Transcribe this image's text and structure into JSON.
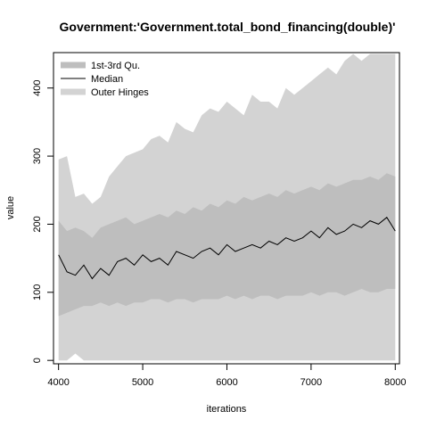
{
  "chart_data": {
    "type": "area",
    "title": "Government:'Government.total_bond_financing(double)'",
    "xlabel": "iterations",
    "ylabel": "value",
    "xlim": [
      3940,
      8050
    ],
    "ylim": [
      -5,
      452
    ],
    "x_ticks": [
      "4000",
      "5000",
      "6000",
      "7000",
      "8000"
    ],
    "y_ticks": [
      "0",
      "100",
      "200",
      "300",
      "400"
    ],
    "legend_placement": "top-left",
    "grid": false,
    "colors": {
      "outer_hinges": "#d3d3d3",
      "quartiles": "#bebebe",
      "median": "#000000",
      "axis": "#000000",
      "plot_border": "#000000"
    },
    "legend": [
      {
        "label": "1st-3rd Qu.",
        "kind": "band",
        "color": "#bebebe"
      },
      {
        "label": "Median",
        "kind": "line",
        "color": "#000000"
      },
      {
        "label": "Outer Hinges",
        "kind": "band",
        "color": "#d3d3d3"
      }
    ],
    "x": [
      4000,
      4100,
      4200,
      4300,
      4400,
      4500,
      4600,
      4700,
      4800,
      4900,
      5000,
      5100,
      5200,
      5300,
      5400,
      5500,
      5600,
      5700,
      5800,
      5900,
      6000,
      6100,
      6200,
      6300,
      6400,
      6500,
      6600,
      6700,
      6800,
      6900,
      7000,
      7100,
      7200,
      7300,
      7400,
      7500,
      7600,
      7700,
      7800,
      7900,
      8000
    ],
    "series": [
      {
        "name": "Outer Hinges",
        "lower": [
          0,
          0,
          10,
          0,
          0,
          0,
          0,
          0,
          0,
          0,
          0,
          0,
          0,
          0,
          0,
          0,
          0,
          0,
          0,
          0,
          0,
          0,
          0,
          0,
          0,
          0,
          0,
          0,
          0,
          0,
          0,
          0,
          0,
          0,
          0,
          0,
          0,
          0,
          0,
          0,
          0
        ],
        "upper": [
          295,
          300,
          240,
          245,
          230,
          240,
          270,
          285,
          300,
          305,
          310,
          325,
          330,
          320,
          350,
          340,
          335,
          360,
          370,
          365,
          380,
          370,
          360,
          390,
          380,
          380,
          370,
          400,
          390,
          400,
          410,
          420,
          430,
          420,
          440,
          450,
          440,
          450,
          450,
          450,
          450
        ]
      },
      {
        "name": "1st-3rd Qu.",
        "lower": [
          65,
          70,
          75,
          80,
          80,
          85,
          80,
          85,
          80,
          85,
          85,
          90,
          90,
          85,
          90,
          90,
          85,
          90,
          90,
          90,
          95,
          90,
          95,
          90,
          95,
          95,
          90,
          95,
          95,
          95,
          100,
          95,
          100,
          100,
          95,
          100,
          105,
          100,
          100,
          105,
          105
        ],
        "upper": [
          205,
          190,
          195,
          190,
          180,
          195,
          200,
          205,
          210,
          200,
          205,
          210,
          215,
          210,
          220,
          215,
          225,
          220,
          230,
          225,
          235,
          230,
          240,
          235,
          240,
          245,
          240,
          250,
          245,
          250,
          255,
          250,
          260,
          255,
          260,
          265,
          265,
          270,
          265,
          275,
          270
        ]
      },
      {
        "name": "Median",
        "values": [
          155,
          130,
          125,
          140,
          120,
          135,
          125,
          145,
          150,
          140,
          155,
          145,
          150,
          140,
          160,
          155,
          150,
          160,
          165,
          155,
          170,
          160,
          165,
          170,
          165,
          175,
          170,
          180,
          175,
          180,
          190,
          180,
          195,
          185,
          190,
          200,
          195,
          205,
          200,
          210,
          190
        ]
      }
    ]
  }
}
